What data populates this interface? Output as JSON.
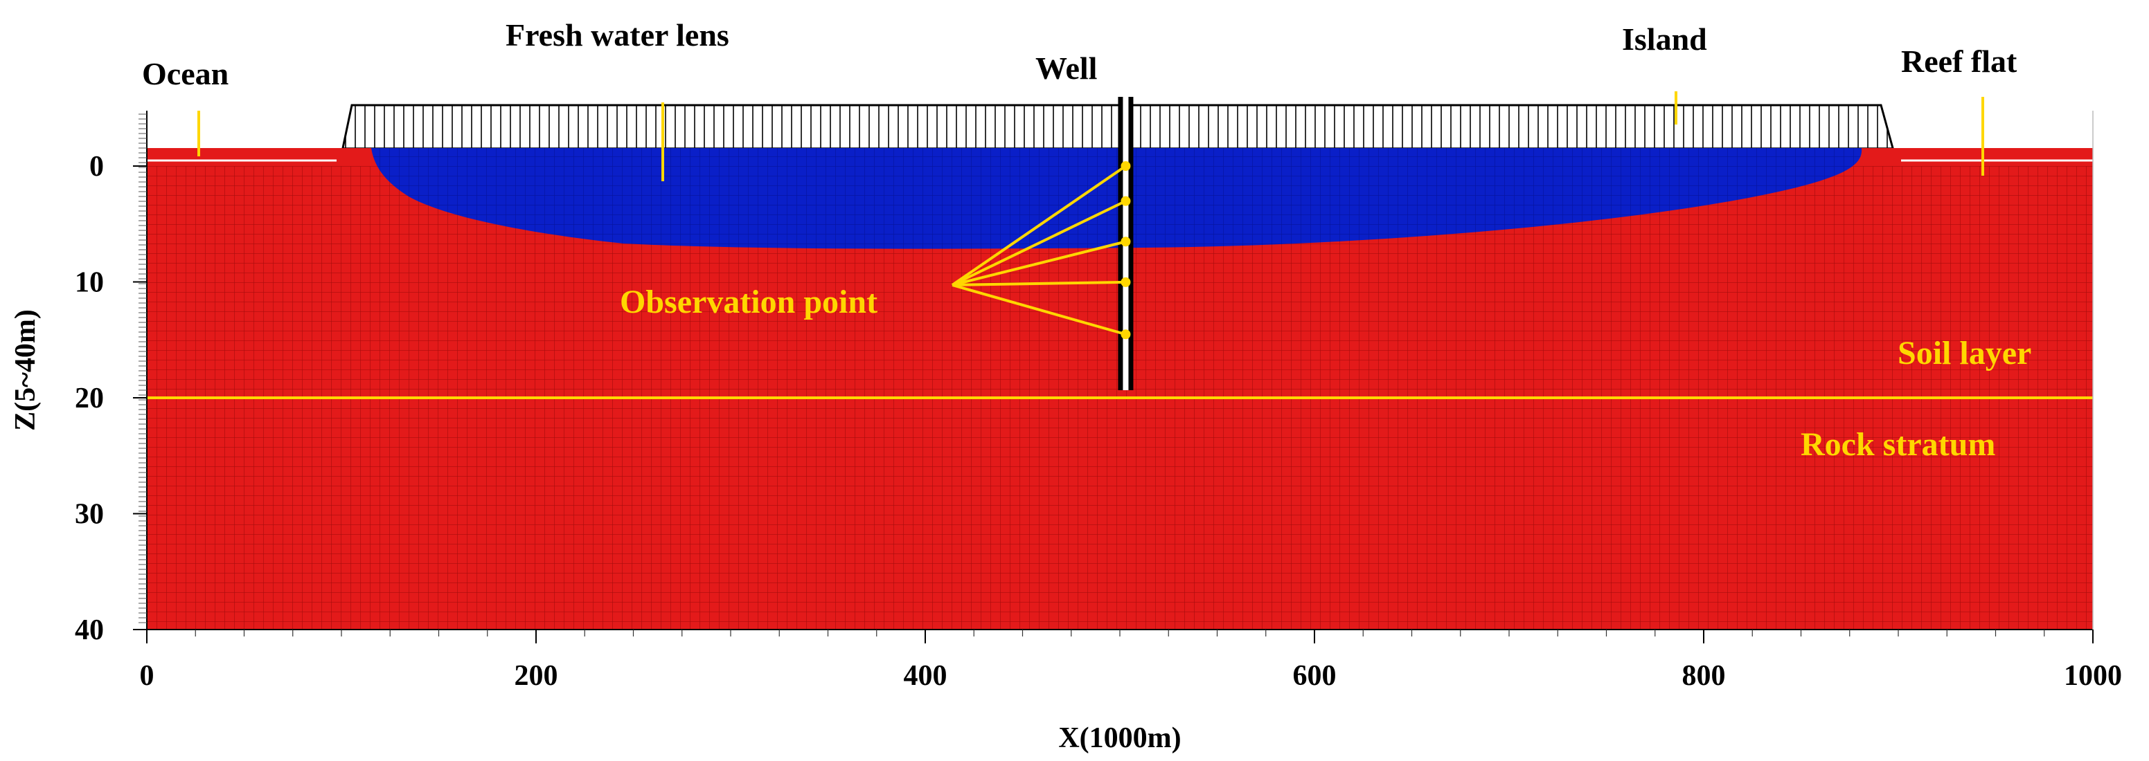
{
  "colors": {
    "saltwater": "#e31a1a",
    "freshwater": "#0a1fc8",
    "grid_line": "#7a0000",
    "grid_line_light": "#ffffff",
    "accent": "#ffd700",
    "island_hatch": "#000000",
    "axis": "#000000"
  },
  "labels": {
    "ocean": "Ocean",
    "lens": "Fresh water lens",
    "well": "Well",
    "island": "Island",
    "reef": "Reef flat",
    "observation": "Observation point",
    "soil": "Soil layer",
    "rock": "Rock stratum"
  },
  "axes": {
    "xlabel": "X(1000m)",
    "ylabel": "Z(5~40m)",
    "xticks": [
      "0",
      "200",
      "400",
      "600",
      "800",
      "1000"
    ],
    "yticks": [
      "0",
      "10",
      "20",
      "30",
      "40"
    ],
    "xrange": [
      0,
      1000
    ],
    "zrange": [
      0,
      40
    ]
  },
  "model": {
    "soil_rock_boundary_z": 20,
    "well_x": 503,
    "observation_depths": [
      0,
      3.5,
      7,
      10.5,
      15
    ],
    "island_x_range": [
      100,
      900
    ],
    "lens_max_depth": 7.5
  }
}
